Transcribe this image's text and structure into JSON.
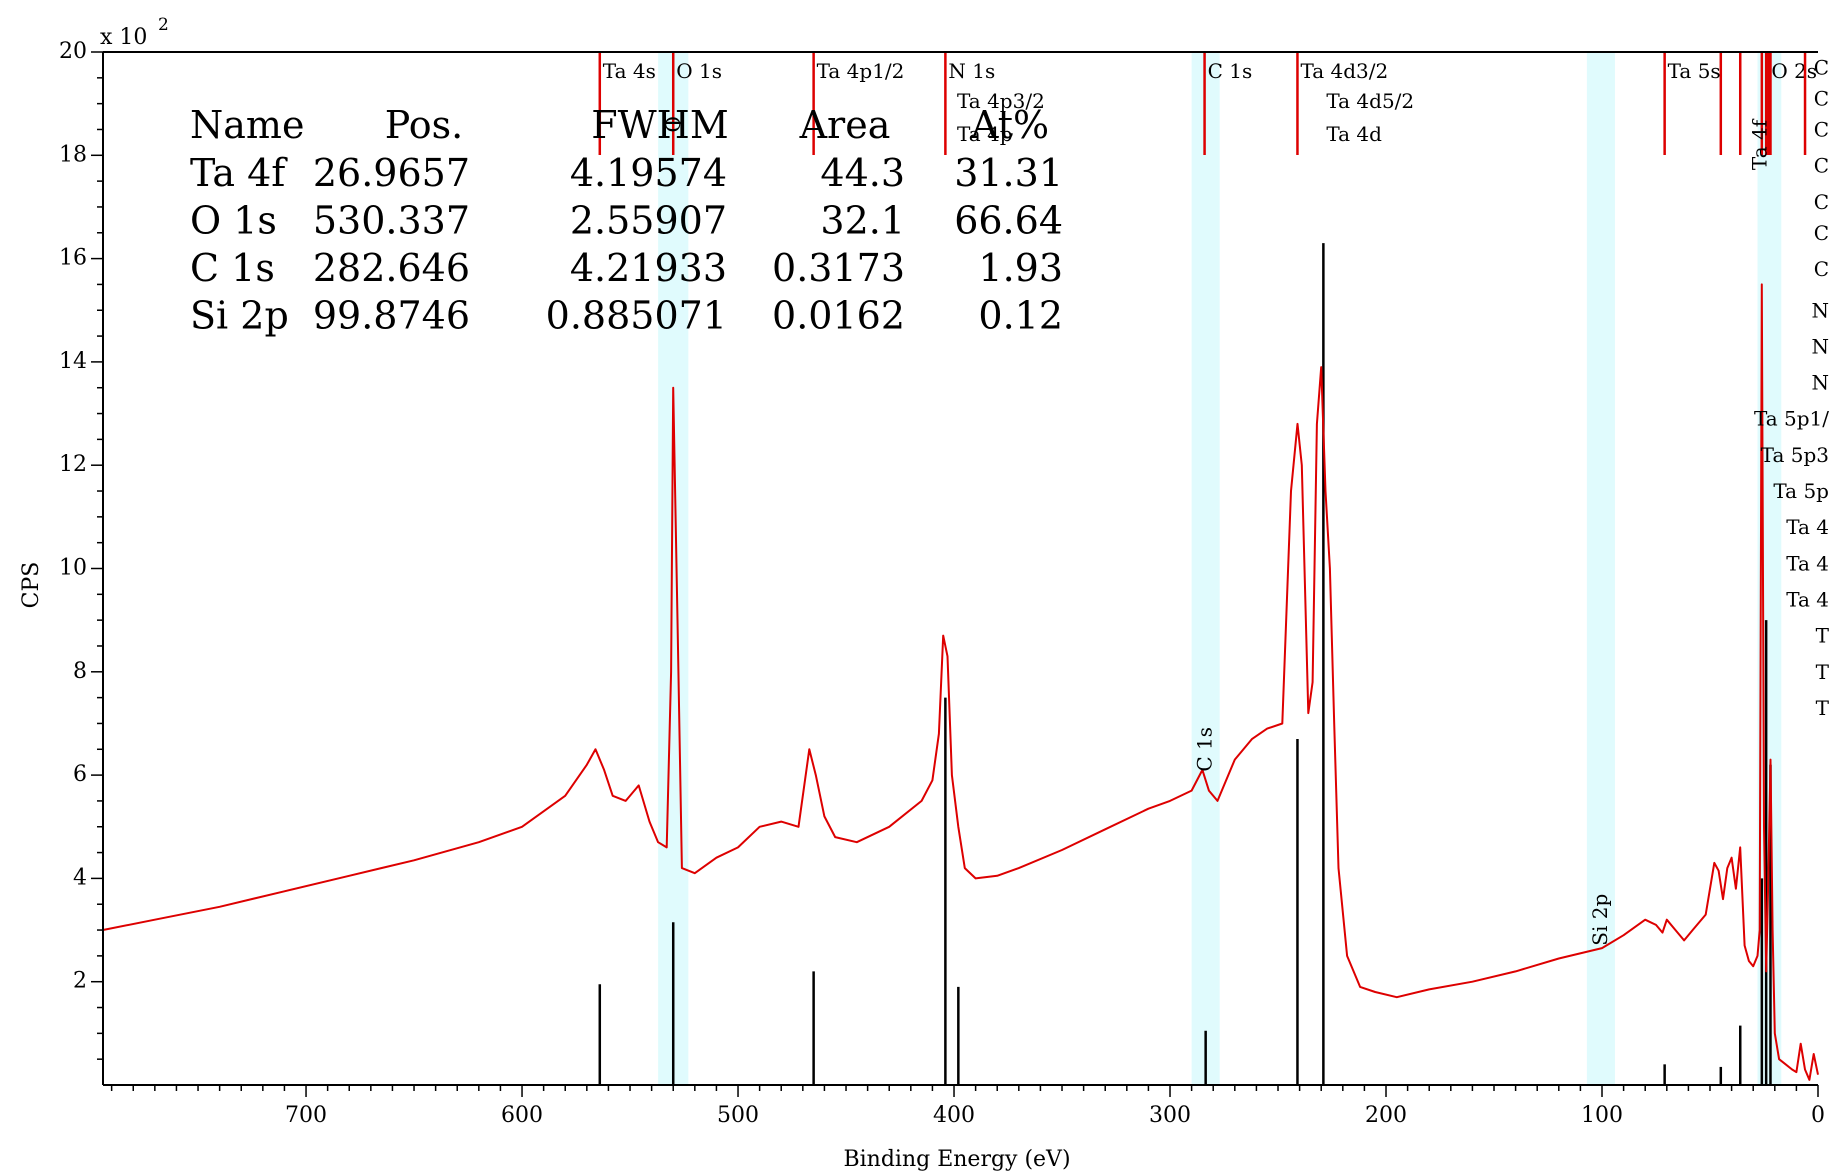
{
  "chart_data": {
    "type": "line",
    "title": "",
    "xlabel": "Binding Energy (eV)",
    "ylabel": "CPS",
    "y_scale_label": "x 10",
    "y_scale_exponent": "2",
    "xlim": [
      794,
      0
    ],
    "ylim": [
      0,
      20
    ],
    "x_ticks": [
      700,
      600,
      500,
      400,
      300,
      200,
      100,
      0
    ],
    "x_tick_labels": [
      "700",
      "600",
      "500",
      "400",
      "300",
      "200",
      "100",
      "0"
    ],
    "y_ticks": [
      2,
      4,
      6,
      8,
      10,
      12,
      14,
      16,
      18,
      20
    ],
    "y_tick_labels": [
      "2",
      "4",
      "6",
      "8",
      "10",
      "12",
      "14",
      "16",
      "18",
      "20"
    ],
    "grid": false,
    "series": [
      {
        "color": "#dd0000",
        "x": [
          794,
          770,
          740,
          710,
          680,
          650,
          620,
          600,
          580,
          570,
          566,
          562,
          558,
          552,
          546,
          541,
          537,
          533,
          531,
          530,
          528,
          526,
          520,
          510,
          500,
          490,
          480,
          472,
          467,
          464,
          460,
          455,
          445,
          430,
          415,
          410,
          407,
          405,
          403,
          401,
          398,
          395,
          390,
          380,
          370,
          350,
          330,
          310,
          300,
          290,
          285,
          282,
          278,
          270,
          262,
          255,
          248,
          244,
          241,
          239,
          236,
          234,
          232,
          230,
          228,
          226,
          224,
          222,
          218,
          212,
          205,
          195,
          180,
          160,
          140,
          120,
          100,
          90,
          80,
          75,
          72,
          70,
          66,
          62,
          58,
          52,
          48,
          46,
          44,
          42,
          40,
          38,
          36,
          34,
          32,
          30,
          28,
          27,
          26,
          25,
          24,
          23,
          22,
          21,
          20,
          18,
          15,
          12,
          10,
          8,
          6,
          4,
          2,
          0
        ],
        "y": [
          3.0,
          3.2,
          3.45,
          3.75,
          4.05,
          4.35,
          4.7,
          5.0,
          5.6,
          6.2,
          6.5,
          6.1,
          5.6,
          5.5,
          5.8,
          5.1,
          4.7,
          4.6,
          8.0,
          13.5,
          9.0,
          4.2,
          4.1,
          4.4,
          4.6,
          5.0,
          5.1,
          5.0,
          6.5,
          6.0,
          5.2,
          4.8,
          4.7,
          5.0,
          5.5,
          5.9,
          6.8,
          8.7,
          8.3,
          6.0,
          5.0,
          4.2,
          4.0,
          4.05,
          4.2,
          4.55,
          4.95,
          5.35,
          5.5,
          5.7,
          6.1,
          5.7,
          5.5,
          6.3,
          6.7,
          6.9,
          7.0,
          11.5,
          12.8,
          12.0,
          7.2,
          7.8,
          12.8,
          13.9,
          11.5,
          10.0,
          7.0,
          4.2,
          2.5,
          1.9,
          1.8,
          1.7,
          1.85,
          2.0,
          2.2,
          2.45,
          2.65,
          2.9,
          3.2,
          3.1,
          2.95,
          3.2,
          3.0,
          2.8,
          3.0,
          3.3,
          4.3,
          4.15,
          3.6,
          4.2,
          4.4,
          3.8,
          4.6,
          2.7,
          2.4,
          2.3,
          2.5,
          3.0,
          15.5,
          5.0,
          2.2,
          4.0,
          6.3,
          3.0,
          1.0,
          0.5,
          0.4,
          0.3,
          0.25,
          0.8,
          0.3,
          0.1,
          0.6,
          0.2
        ]
      }
    ],
    "bars": [
      {
        "x": 564,
        "y": 1.95
      },
      {
        "x": 530,
        "y": 3.15
      },
      {
        "x": 465,
        "y": 2.2
      },
      {
        "x": 404,
        "y": 7.5
      },
      {
        "x": 398,
        "y": 1.9
      },
      {
        "x": 283.5,
        "y": 1.05
      },
      {
        "x": 241,
        "y": 6.7
      },
      {
        "x": 229,
        "y": 16.3
      },
      {
        "x": 71,
        "y": 0.4
      },
      {
        "x": 45,
        "y": 0.35
      },
      {
        "x": 36,
        "y": 1.15
      },
      {
        "x": 26,
        "y": 4.0
      },
      {
        "x": 24,
        "y": 9.0
      },
      {
        "x": 22,
        "y": 6.2
      }
    ],
    "bands": [
      {
        "x1": 537,
        "x2": 523
      },
      {
        "x1": 290,
        "x2": 277
      },
      {
        "x1": 107,
        "x2": 94
      },
      {
        "x1": 28,
        "x2": 17
      }
    ],
    "marker_lines": [
      {
        "x": 564,
        "text": "Ta 4s",
        "row": 0
      },
      {
        "x": 530,
        "text": "O 1s",
        "row": 0
      },
      {
        "x": 465,
        "text": "Ta 4p1/2",
        "row": 0
      },
      {
        "x": 404,
        "text": "N 1s",
        "row": 0
      },
      {
        "x": 400,
        "text": "Ta 4p3/2",
        "row": 1
      },
      {
        "x": 400,
        "text": "Ta 4p",
        "row": 2
      },
      {
        "x": 284,
        "text": "C 1s",
        "row": 0
      },
      {
        "x": 241,
        "text": "Ta 4d3/2",
        "row": 0
      },
      {
        "x": 229,
        "text": "Ta 4d5/2",
        "row": 1
      },
      {
        "x": 229,
        "text": "Ta 4d",
        "row": 2
      },
      {
        "x": 71,
        "text": "Ta 5s",
        "row": 0
      },
      {
        "x": 45,
        "text": "",
        "row": 0
      },
      {
        "x": 36,
        "text": "",
        "row": 0
      },
      {
        "x": 26,
        "text": "",
        "row": 0
      },
      {
        "x": 24,
        "text": "",
        "row": 0
      },
      {
        "x": 22,
        "text": "",
        "row": 0
      },
      {
        "x": 23,
        "text": "O 2s",
        "row": 0
      },
      {
        "x": 6,
        "text": "",
        "row": 0
      }
    ],
    "rotated_labels": [
      {
        "x": 284,
        "y": 6.5,
        "text": "C 1s"
      },
      {
        "x": 101,
        "y": 3.2,
        "text": "Si 2p"
      },
      {
        "x": 27,
        "y": 18.2,
        "text": "Ta 4f"
      },
      {
        "x": 530,
        "y": 18.6,
        "text": "O"
      }
    ],
    "right_edge_labels": [
      {
        "y": 19.7,
        "text": "C"
      },
      {
        "y": 19.1,
        "text": "C"
      },
      {
        "y": 18.5,
        "text": "C"
      },
      {
        "y": 17.8,
        "text": "C"
      },
      {
        "y": 17.1,
        "text": "C"
      },
      {
        "y": 16.5,
        "text": "C"
      },
      {
        "y": 15.8,
        "text": "C"
      },
      {
        "y": 15.0,
        "text": "N"
      },
      {
        "y": 14.3,
        "text": "N"
      },
      {
        "y": 13.6,
        "text": "N"
      },
      {
        "y": 12.9,
        "text": "Ta 5p1/"
      },
      {
        "y": 12.2,
        "text": "Ta 5p3"
      },
      {
        "y": 11.5,
        "text": "Ta 5p"
      },
      {
        "y": 10.8,
        "text": "Ta 4"
      },
      {
        "y": 10.1,
        "text": "Ta 4"
      },
      {
        "y": 9.4,
        "text": "Ta 4"
      },
      {
        "y": 8.7,
        "text": "T"
      },
      {
        "y": 8.0,
        "text": "T"
      },
      {
        "y": 7.3,
        "text": "T"
      }
    ],
    "table": {
      "headers": [
        "Name",
        "Pos.",
        "FWHM",
        "Area",
        "At%"
      ],
      "rows": [
        [
          "Ta 4f",
          "26.9657",
          "4.19574",
          "44.3",
          "31.31"
        ],
        [
          "O 1s",
          "530.337",
          "2.55907",
          "32.1",
          "66.64"
        ],
        [
          "C 1s",
          "282.646",
          "4.21933",
          "0.3173",
          "1.93"
        ],
        [
          "Si 2p",
          "99.8746",
          "0.885071",
          "0.0162",
          "0.12"
        ]
      ]
    }
  }
}
